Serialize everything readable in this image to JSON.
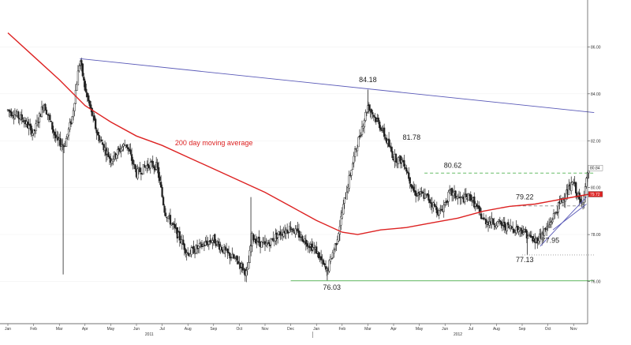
{
  "chart_data": {
    "type": "candlestick",
    "y_axis": {
      "ticks": [
        76.0,
        78.0,
        80.0,
        82.0,
        84.0,
        86.0
      ],
      "tick_labels": [
        "76.00",
        "78.00",
        "80.00",
        "82.00",
        "84.00",
        "86.00"
      ],
      "ylim": [
        74.2,
        88.0
      ],
      "position": "right"
    },
    "x_axis": {
      "months": [
        "Jan",
        "Feb",
        "Mar",
        "Apr",
        "May",
        "Jun",
        "Jul",
        "Aug",
        "Sep",
        "Oct",
        "Nov",
        "Dec",
        "Jan",
        "Feb",
        "Mar",
        "Apr",
        "May",
        "Jun",
        "Jul",
        "Aug",
        "Sep",
        "Oct",
        "Nov"
      ],
      "years": [
        "2011",
        "2012"
      ]
    },
    "price_path": [
      {
        "t": 0.0,
        "v": 83.3
      },
      {
        "t": 0.6,
        "v": 82.9
      },
      {
        "t": 1.0,
        "v": 82.3
      },
      {
        "t": 1.4,
        "v": 83.6
      },
      {
        "t": 1.9,
        "v": 82.0
      },
      {
        "t": 2.2,
        "v": 81.8
      },
      {
        "t": 2.5,
        "v": 83.0
      },
      {
        "t": 2.8,
        "v": 85.5
      },
      {
        "t": 3.0,
        "v": 84.2
      },
      {
        "t": 3.5,
        "v": 82.2
      },
      {
        "t": 4.0,
        "v": 81.2
      },
      {
        "t": 4.6,
        "v": 81.9
      },
      {
        "t": 5.0,
        "v": 80.6
      },
      {
        "t": 5.5,
        "v": 81.0
      },
      {
        "t": 5.8,
        "v": 80.9
      },
      {
        "t": 6.1,
        "v": 79.0
      },
      {
        "t": 6.6,
        "v": 78.0
      },
      {
        "t": 7.0,
        "v": 77.2
      },
      {
        "t": 7.5,
        "v": 77.5
      },
      {
        "t": 8.0,
        "v": 77.8
      },
      {
        "t": 8.5,
        "v": 77.2
      },
      {
        "t": 9.0,
        "v": 76.8
      },
      {
        "t": 9.3,
        "v": 76.3
      },
      {
        "t": 9.5,
        "v": 77.9
      },
      {
        "t": 10.0,
        "v": 77.5
      },
      {
        "t": 10.5,
        "v": 78.0
      },
      {
        "t": 11.0,
        "v": 78.3
      },
      {
        "t": 11.5,
        "v": 77.8
      },
      {
        "t": 12.0,
        "v": 77.3
      },
      {
        "t": 12.4,
        "v": 76.4
      },
      {
        "t": 12.8,
        "v": 77.8
      },
      {
        "t": 13.1,
        "v": 79.5
      },
      {
        "t": 13.5,
        "v": 81.5
      },
      {
        "t": 14.0,
        "v": 83.5
      },
      {
        "t": 14.5,
        "v": 82.6
      },
      {
        "t": 15.0,
        "v": 81.3
      },
      {
        "t": 15.4,
        "v": 81.1
      },
      {
        "t": 15.8,
        "v": 79.8
      },
      {
        "t": 16.3,
        "v": 79.6
      },
      {
        "t": 16.8,
        "v": 78.9
      },
      {
        "t": 17.2,
        "v": 79.8
      },
      {
        "t": 17.6,
        "v": 79.5
      },
      {
        "t": 18.0,
        "v": 79.6
      },
      {
        "t": 18.5,
        "v": 78.6
      },
      {
        "t": 19.0,
        "v": 78.5
      },
      {
        "t": 19.5,
        "v": 78.3
      },
      {
        "t": 20.0,
        "v": 78.2
      },
      {
        "t": 20.5,
        "v": 77.7
      },
      {
        "t": 21.0,
        "v": 78.3
      },
      {
        "t": 21.5,
        "v": 79.4
      },
      {
        "t": 22.0,
        "v": 80.2
      },
      {
        "t": 22.3,
        "v": 79.2
      },
      {
        "t": 22.6,
        "v": 80.8
      }
    ],
    "long_wicks": [
      {
        "t": 2.15,
        "low": 76.3
      },
      {
        "t": 2.85,
        "high": 85.5
      },
      {
        "t": 9.45,
        "high": 79.6
      },
      {
        "t": 12.42,
        "low": 76.03
      },
      {
        "t": 14.0,
        "high": 84.18
      },
      {
        "t": 20.2,
        "low": 77.13
      }
    ],
    "series": [
      {
        "name": "200 day moving average",
        "color": "#dd2222",
        "points": [
          {
            "t": 0.0,
            "v": 86.6
          },
          {
            "t": 1.0,
            "v": 85.6
          },
          {
            "t": 2.0,
            "v": 84.6
          },
          {
            "t": 3.0,
            "v": 83.5
          },
          {
            "t": 4.0,
            "v": 82.8
          },
          {
            "t": 5.0,
            "v": 82.2
          },
          {
            "t": 6.0,
            "v": 81.8
          },
          {
            "t": 7.0,
            "v": 81.3
          },
          {
            "t": 8.0,
            "v": 80.8
          },
          {
            "t": 9.0,
            "v": 80.3
          },
          {
            "t": 10.0,
            "v": 79.8
          },
          {
            "t": 11.0,
            "v": 79.2
          },
          {
            "t": 12.0,
            "v": 78.6
          },
          {
            "t": 13.0,
            "v": 78.1
          },
          {
            "t": 13.6,
            "v": 78.0
          },
          {
            "t": 14.5,
            "v": 78.2
          },
          {
            "t": 15.5,
            "v": 78.3
          },
          {
            "t": 16.5,
            "v": 78.5
          },
          {
            "t": 17.5,
            "v": 78.7
          },
          {
            "t": 18.5,
            "v": 79.0
          },
          {
            "t": 19.5,
            "v": 79.2
          },
          {
            "t": 20.5,
            "v": 79.3
          },
          {
            "t": 21.5,
            "v": 79.5
          },
          {
            "t": 22.6,
            "v": 79.72
          }
        ]
      }
    ],
    "lines": [
      {
        "kind": "trendline",
        "color": "#5a5ab8",
        "from": {
          "t": 2.8,
          "v": 85.5
        },
        "to": {
          "t": 22.8,
          "v": 83.2
        }
      },
      {
        "kind": "support",
        "color": "#66bb66",
        "from": {
          "t": 11.0,
          "v": 76.03
        },
        "to": {
          "t": 22.8,
          "v": 76.03
        }
      },
      {
        "kind": "resistance",
        "color": "#66bb66",
        "dashed": true,
        "from": {
          "t": 16.2,
          "v": 80.62
        },
        "to": {
          "t": 22.8,
          "v": 80.62
        }
      },
      {
        "kind": "level",
        "color": "#888888",
        "dashed": true,
        "from": {
          "t": 19.6,
          "v": 79.22
        },
        "to": {
          "t": 22.4,
          "v": 79.22
        }
      },
      {
        "kind": "level",
        "color": "#999999",
        "dotted": true,
        "from": {
          "t": 20.0,
          "v": 77.13
        },
        "to": {
          "t": 22.8,
          "v": 77.13
        }
      },
      {
        "kind": "uptrend",
        "color": "#5a5ab8",
        "from": {
          "t": 20.7,
          "v": 77.5
        },
        "to": {
          "t": 22.5,
          "v": 79.6
        }
      },
      {
        "kind": "uptrend",
        "color": "#5a5ab8",
        "from": {
          "t": 21.2,
          "v": 78.2
        },
        "to": {
          "t": 22.5,
          "v": 79.3
        }
      }
    ],
    "annotations": [
      {
        "text": "84.18",
        "t": 14.0,
        "v": 84.5
      },
      {
        "text": "81.78",
        "t": 15.7,
        "v": 82.05
      },
      {
        "text": "80.62",
        "t": 17.3,
        "v": 80.85
      },
      {
        "text": "79.22",
        "t": 20.1,
        "v": 79.5
      },
      {
        "text": "77.95",
        "t": 21.1,
        "v": 77.65
      },
      {
        "text": "77.13",
        "t": 20.1,
        "v": 76.83
      },
      {
        "text": "76.03",
        "t": 12.6,
        "v": 75.65
      }
    ],
    "ma_label": {
      "text": "200 day moving average",
      "t": 6.5,
      "v": 81.8
    },
    "value_tags": [
      {
        "text": "80.84",
        "v": 80.84,
        "bg": "#ffffff",
        "fg": "#222222"
      },
      {
        "text": "79.72",
        "v": 79.72,
        "bg": "#dd2222",
        "fg": "#ffffff"
      }
    ]
  }
}
